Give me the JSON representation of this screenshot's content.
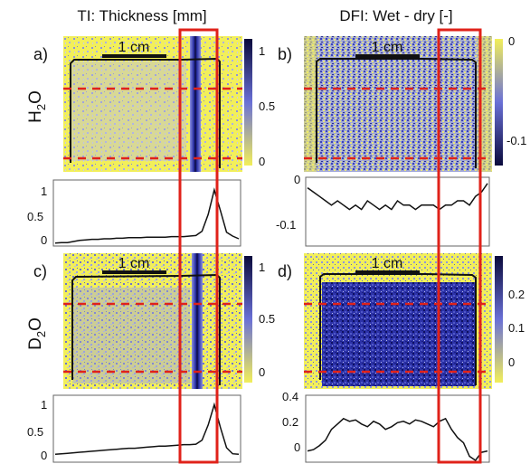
{
  "column_titles": {
    "left": "TI: Thickness [mm]",
    "right": "DFI: Wet - dry [-]"
  },
  "row_labels": {
    "top": {
      "main": "H",
      "sub": "2",
      "tail": "O"
    },
    "bottom": {
      "main": "D",
      "sub": "2",
      "tail": "O"
    }
  },
  "panels": [
    {
      "id": "a",
      "label": "a)",
      "scale_bar": "1 cm",
      "map": "thickness",
      "colorbar": {
        "ticks": [
          "1",
          "0.5",
          "0"
        ],
        "top_color": "#0a0a3c",
        "bottom_color": "#f2ef5a"
      },
      "profile": {
        "yticks": [
          "1",
          "0.5",
          "0"
        ],
        "ylim": [
          0,
          1.15
        ],
        "values": [
          0.02,
          0.03,
          0.03,
          0.05,
          0.07,
          0.08,
          0.09,
          0.09,
          0.1,
          0.1,
          0.11,
          0.11,
          0.12,
          0.12,
          0.12,
          0.13,
          0.13,
          0.13,
          0.13,
          0.14,
          0.14,
          0.14,
          0.15,
          0.16,
          0.24,
          0.55,
          1.0,
          0.62,
          0.22,
          0.15,
          0.1
        ]
      }
    },
    {
      "id": "b",
      "label": "b)",
      "scale_bar": "1 cm",
      "map": "dfi_water",
      "colorbar": {
        "ticks": [
          "0",
          "-0.1"
        ],
        "top_color": "#f2ef5a",
        "bottom_color": "#0a0a3c"
      },
      "profile": {
        "yticks": [
          "0",
          "-0.1"
        ],
        "ylim": [
          -0.14,
          0.01
        ],
        "values": [
          -0.01,
          -0.02,
          -0.03,
          -0.04,
          -0.05,
          -0.04,
          -0.05,
          -0.06,
          -0.05,
          -0.06,
          -0.04,
          -0.05,
          -0.06,
          -0.05,
          -0.06,
          -0.04,
          -0.05,
          -0.05,
          -0.06,
          -0.05,
          -0.05,
          -0.05,
          -0.06,
          -0.05,
          -0.05,
          -0.04,
          -0.04,
          -0.05,
          -0.03,
          -0.02,
          0.0
        ]
      }
    },
    {
      "id": "c",
      "label": "c)",
      "scale_bar": "1 cm",
      "map": "thickness",
      "colorbar": {
        "ticks": [
          "1",
          "0.5",
          "0"
        ],
        "top_color": "#0a0a3c",
        "bottom_color": "#f2ef5a"
      },
      "profile": {
        "yticks": [
          "1",
          "0.5",
          "0"
        ],
        "ylim": [
          -0.1,
          1.15
        ],
        "values": [
          0.02,
          0.03,
          0.04,
          0.05,
          0.06,
          0.07,
          0.08,
          0.09,
          0.1,
          0.11,
          0.12,
          0.13,
          0.14,
          0.14,
          0.15,
          0.16,
          0.17,
          0.18,
          0.18,
          0.19,
          0.2,
          0.21,
          0.21,
          0.22,
          0.3,
          0.6,
          1.0,
          0.55,
          0.15,
          0.03,
          0.02
        ]
      }
    },
    {
      "id": "d",
      "label": "d)",
      "scale_bar": "1 cm",
      "map": "dfi_deuterium",
      "colorbar": {
        "ticks": [
          "0.2",
          "0.1",
          "0"
        ],
        "top_color": "#0a0a3c",
        "bottom_color": "#f2ef5a"
      },
      "profile": {
        "yticks": [
          "0.4",
          "0.2",
          "0"
        ],
        "ylim": [
          -0.05,
          0.42
        ],
        "values": [
          0.02,
          0.03,
          0.06,
          0.1,
          0.18,
          0.22,
          0.26,
          0.24,
          0.25,
          0.22,
          0.2,
          0.24,
          0.22,
          0.18,
          0.2,
          0.23,
          0.24,
          0.22,
          0.25,
          0.24,
          0.22,
          0.2,
          0.24,
          0.26,
          0.18,
          0.12,
          0.08,
          -0.02,
          -0.05,
          0.01,
          0.02
        ]
      }
    }
  ],
  "colors": {
    "yellow": "#f2ef5a",
    "blue": "#4048c8",
    "dark_blue": "#0a0a3c",
    "dashed_line": "#e0221a",
    "highlight_box": "#e0221a",
    "profile_line": "#111111"
  }
}
